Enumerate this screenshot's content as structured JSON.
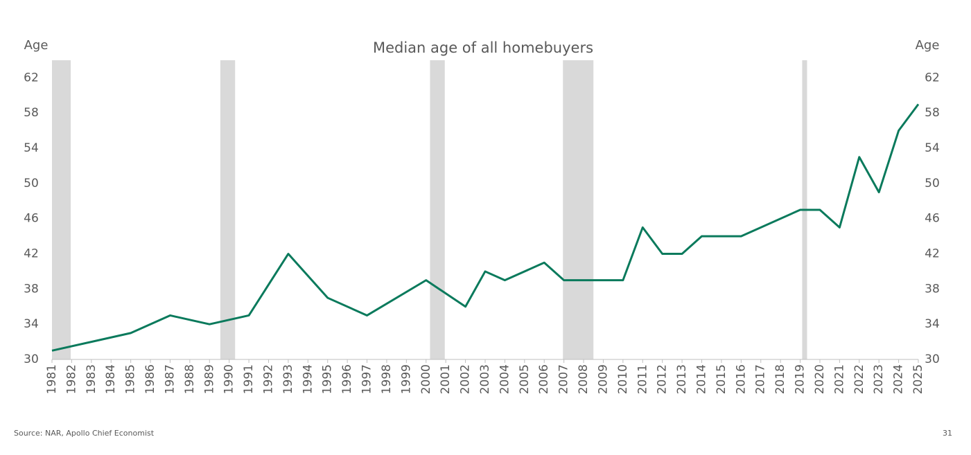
{
  "chart_data": {
    "type": "line",
    "title": "Median age of all homebuyers",
    "y_label": "Age",
    "y2_label": "Age",
    "x": [
      1981,
      1985,
      1987,
      1989,
      1991,
      1993,
      1995,
      1997,
      2000,
      2002,
      2003,
      2004,
      2006,
      2007,
      2010,
      2011,
      2012,
      2013,
      2014,
      2016,
      2019,
      2020,
      2021,
      2022,
      2023,
      2024,
      2025
    ],
    "values": [
      31,
      33,
      35,
      34,
      35,
      42,
      37,
      35,
      39,
      36,
      40,
      39,
      41,
      39,
      39,
      45,
      42,
      42,
      44,
      44,
      47,
      47,
      45,
      53,
      49,
      56,
      59
    ],
    "color": "#0a7a5c",
    "xlim": [
      1981,
      2025
    ],
    "xticks": [
      1981,
      1982,
      1983,
      1984,
      1985,
      1986,
      1987,
      1988,
      1989,
      1990,
      1991,
      1992,
      1993,
      1994,
      1995,
      1996,
      1997,
      1998,
      1999,
      2000,
      2001,
      2002,
      2003,
      2004,
      2005,
      2006,
      2007,
      2008,
      2009,
      2010,
      2011,
      2012,
      2013,
      2014,
      2015,
      2016,
      2017,
      2018,
      2019,
      2020,
      2021,
      2022,
      2023,
      2024,
      2025
    ],
    "ylim": [
      30,
      64
    ],
    "yticks": [
      30,
      34,
      38,
      42,
      46,
      50,
      54,
      58,
      62
    ],
    "y2lim": [
      30,
      64
    ],
    "y2ticks": [
      30,
      34,
      38,
      42,
      46,
      50,
      54,
      58,
      62
    ],
    "shaded_ranges": [
      [
        1981,
        1981.95
      ],
      [
        1989.55,
        1990.3
      ],
      [
        2000.2,
        2000.95
      ],
      [
        2006.95,
        2008.5
      ],
      [
        2019.1,
        2019.35
      ]
    ],
    "shade_color": "#d9d9d9",
    "source": "Source: NAR, Apollo Chief Economist",
    "page_number": "31"
  }
}
